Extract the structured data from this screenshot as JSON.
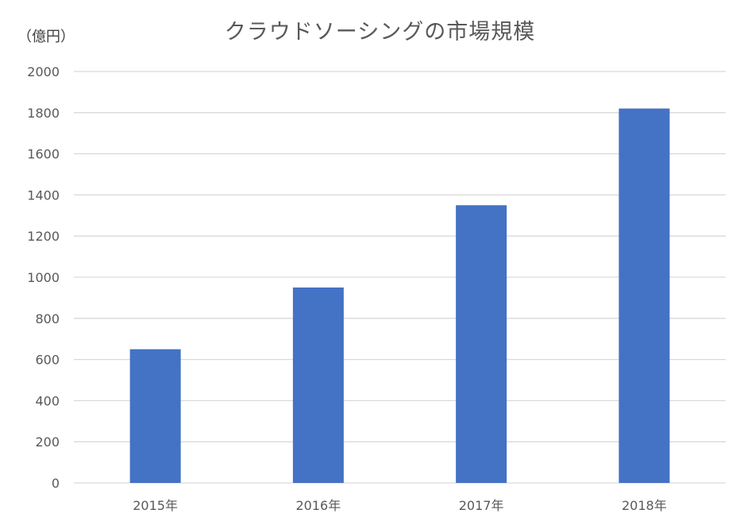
{
  "chart_data": {
    "type": "bar",
    "title": "クラウドソーシングの市場規模",
    "y_unit_label": "（億円）",
    "categories": [
      "2015年",
      "2016年",
      "2017年",
      "2018年"
    ],
    "series": [
      {
        "values": [
          650,
          950,
          1350,
          1820
        ],
        "color": "#4472C4"
      }
    ],
    "ylim": [
      0,
      2000
    ],
    "y_ticks": [
      "0",
      "200",
      "400",
      "600",
      "800",
      "1000",
      "1200",
      "1400",
      "1600",
      "1800",
      "2000"
    ],
    "grid": true,
    "gridline_color": "#D9D9D9",
    "legend": "none"
  }
}
